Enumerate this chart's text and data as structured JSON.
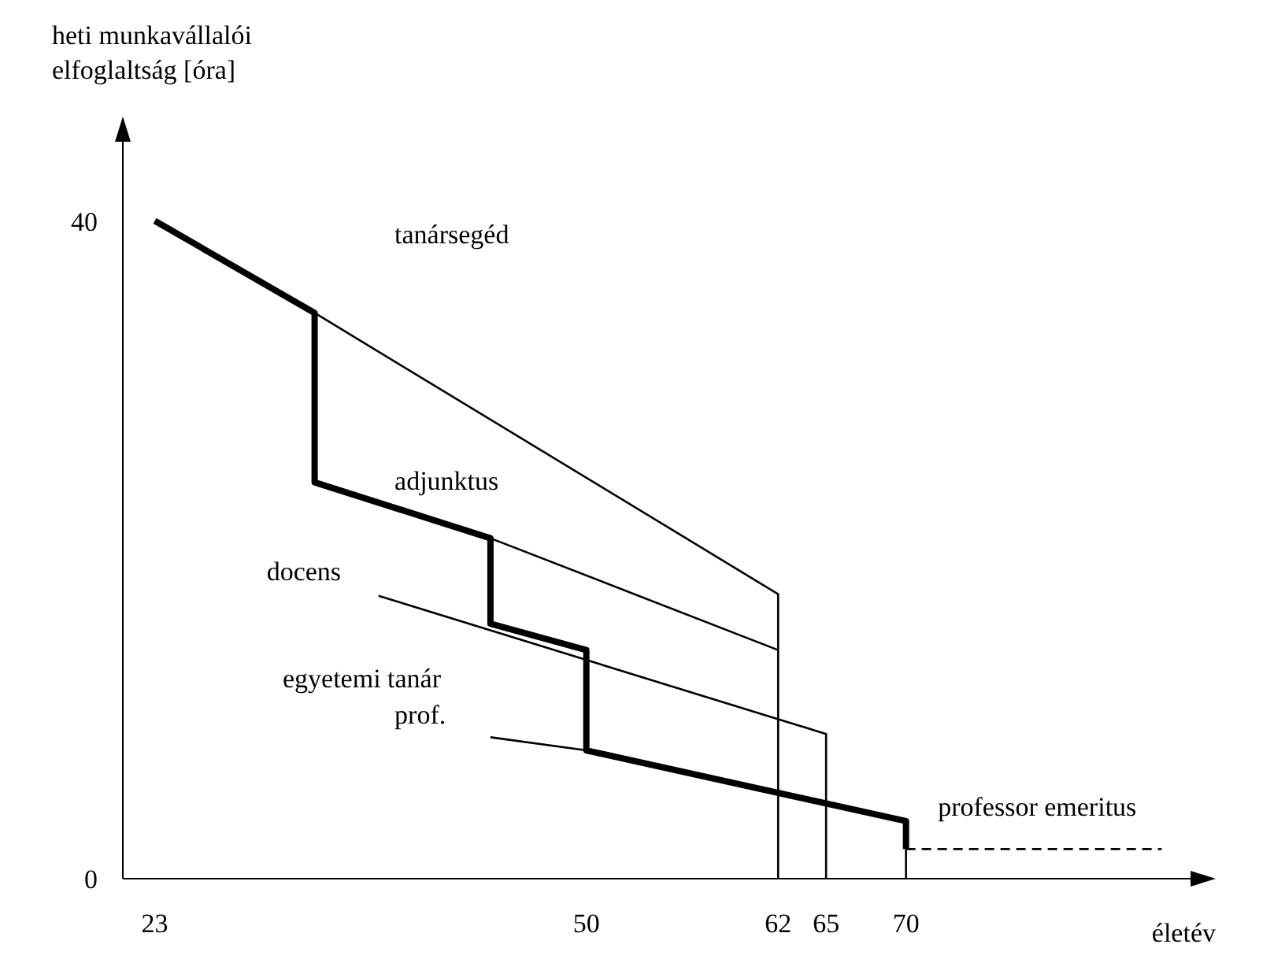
{
  "chart_data": {
    "type": "line",
    "xlabel": "életév",
    "ylabel": "heti munkavállalói\nelfoglaltság [óra]",
    "xlim": [
      21,
      88
    ],
    "ylim": [
      0,
      45
    ],
    "xticks": [
      23,
      50,
      62,
      65,
      70
    ],
    "yticks": [
      0,
      40
    ],
    "grid": false,
    "marker": "none",
    "line_style": "solid",
    "series": [
      {
        "color": "#000000",
        "x": [
          23,
          33,
          33,
          44,
          44,
          50,
          50,
          70,
          70
        ],
        "values": [
          40,
          34.4,
          24.1,
          20.7,
          15.5,
          13.9,
          7.8,
          3.5,
          1.8
        ]
      },
      {
        "color": "#000000",
        "x": [
          70,
          86
        ],
        "values": [
          1.8,
          1.8
        ],
        "line_style": "dashed"
      },
      {
        "color": "#000000",
        "x": [
          33,
          62,
          62
        ],
        "values": [
          34.4,
          17.3,
          0
        ]
      },
      {
        "color": "#000000",
        "x": [
          44,
          62
        ],
        "values": [
          20.7,
          13.9
        ]
      },
      {
        "color": "#000000",
        "x": [
          37,
          65,
          65
        ],
        "values": [
          17.2,
          8.8,
          0
        ]
      },
      {
        "color": "#000000",
        "x": [
          44,
          50
        ],
        "values": [
          8.6,
          7.8
        ]
      },
      {
        "color": "#000000",
        "x": [
          70,
          70
        ],
        "values": [
          1.8,
          0
        ]
      }
    ],
    "annotations": [
      "tanársegéd",
      "adjunktus",
      "docens",
      "egyetemi tanár",
      "prof.",
      "professor emeritus"
    ]
  }
}
